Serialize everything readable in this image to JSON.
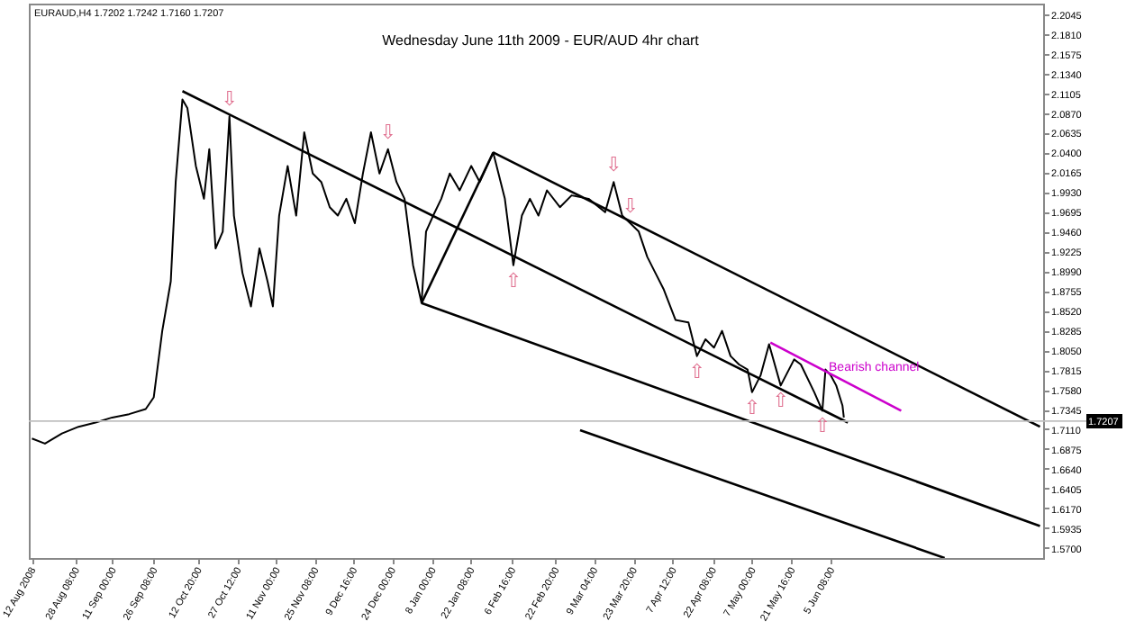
{
  "chart_data": {
    "type": "line",
    "title": "Wednesday June 11th 2009 - EUR/AUD 4hr chart",
    "subtitle": "EURAUD,H4  1.7202 1.7242 1.7160 1.7207",
    "xlim": [
      "2008-08-10T20:00",
      "2009-08-23T08:00"
    ],
    "ylim": [
      1.558,
      2.217
    ],
    "xticks": [
      {
        "value": "2008-08-12T00:00",
        "label": "12 Aug 2008"
      },
      {
        "value": "2008-08-28T08:00",
        "label": "28 Aug 08:00"
      },
      {
        "value": "2008-09-11T00:00",
        "label": "11 Sep 00:00"
      },
      {
        "value": "2008-09-26T08:00",
        "label": "26 Sep 08:00"
      },
      {
        "value": "2008-10-12T20:00",
        "label": "12 Oct 20:00"
      },
      {
        "value": "2008-10-27T12:00",
        "label": "27 Oct 12:00"
      },
      {
        "value": "2008-11-11T00:00",
        "label": "11 Nov 00:00"
      },
      {
        "value": "2008-11-25T08:00",
        "label": "25 Nov 08:00"
      },
      {
        "value": "2008-12-09T16:00",
        "label": "9 Dec 16:00"
      },
      {
        "value": "2008-12-24T00:00",
        "label": "24 Dec 00:00"
      },
      {
        "value": "2009-01-08T00:00",
        "label": "8 Jan 00:00"
      },
      {
        "value": "2009-01-22T08:00",
        "label": "22 Jan 08:00"
      },
      {
        "value": "2009-02-06T16:00",
        "label": "6 Feb 16:00"
      },
      {
        "value": "2009-02-22T20:00",
        "label": "22 Feb 20:00"
      },
      {
        "value": "2009-03-09T04:00",
        "label": "9 Mar 04:00"
      },
      {
        "value": "2009-03-23T20:00",
        "label": "23 Mar 20:00"
      },
      {
        "value": "2009-04-07T12:00",
        "label": "7 Apr 12:00"
      },
      {
        "value": "2009-04-22T08:00",
        "label": "22 Apr 08:00"
      },
      {
        "value": "2009-05-07T00:00",
        "label": "7 May 00:00"
      },
      {
        "value": "2009-05-21T16:00",
        "label": "21 May 16:00"
      },
      {
        "value": "2009-06-05T08:00",
        "label": "5 Jun 08:00"
      }
    ],
    "yticks": [
      {
        "value": 1.57,
        "label": "1.5700"
      },
      {
        "value": 1.5935,
        "label": "1.5935"
      },
      {
        "value": 1.617,
        "label": "1.6170"
      },
      {
        "value": 1.6405,
        "label": "1.6405"
      },
      {
        "value": 1.664,
        "label": "1.6640"
      },
      {
        "value": 1.6875,
        "label": "1.6875"
      },
      {
        "value": 1.711,
        "label": "1.7110"
      },
      {
        "value": 1.7345,
        "label": "1.7345"
      },
      {
        "value": 1.758,
        "label": "1.7580"
      },
      {
        "value": 1.7815,
        "label": "1.7815"
      },
      {
        "value": 1.805,
        "label": "1.8050"
      },
      {
        "value": 1.8285,
        "label": "1.8285"
      },
      {
        "value": 1.852,
        "label": "1.8520"
      },
      {
        "value": 1.8755,
        "label": "1.8755"
      },
      {
        "value": 1.899,
        "label": "1.8990"
      },
      {
        "value": 1.9225,
        "label": "1.9225"
      },
      {
        "value": 1.946,
        "label": "1.9460"
      },
      {
        "value": 1.9695,
        "label": "1.9695"
      },
      {
        "value": 1.993,
        "label": "1.9930"
      },
      {
        "value": 2.0165,
        "label": "2.0165"
      },
      {
        "value": 2.04,
        "label": "2.0400"
      },
      {
        "value": 2.0635,
        "label": "2.0635"
      },
      {
        "value": 2.087,
        "label": "2.0870"
      },
      {
        "value": 2.1105,
        "label": "2.1105"
      },
      {
        "value": 2.134,
        "label": "2.1340"
      },
      {
        "value": 2.1575,
        "label": "2.1575"
      },
      {
        "value": 2.181,
        "label": "2.1810"
      },
      {
        "value": 2.2045,
        "label": "2.2045"
      }
    ],
    "series": [
      {
        "color": "#000000",
        "x": [
          "2008-08-12T00:00",
          "2008-08-16T20:00",
          "2008-08-23T04:00",
          "2008-08-29T08:00",
          "2008-09-04T16:00",
          "2008-09-10T20:00",
          "2008-09-17T04:00",
          "2008-09-23T08:00",
          "2008-09-26T08:00",
          "2008-09-29T12:00",
          "2008-10-02T16:00",
          "2008-10-04T12:00",
          "2008-10-07T00:00",
          "2008-10-08T20:00",
          "2008-10-12T00:00",
          "2008-10-15T00:00",
          "2008-10-17T00:00",
          "2008-10-19T08:00",
          "2008-10-22T00:00",
          "2008-10-24T12:00",
          "2008-10-26T04:00",
          "2008-10-29T08:00",
          "2008-11-01T12:00",
          "2008-11-04T16:00",
          "2008-11-07T16:00",
          "2008-11-09T16:00",
          "2008-11-12T00:00",
          "2008-11-15T04:00",
          "2008-11-18T08:00",
          "2008-11-21T08:00",
          "2008-11-24T12:00",
          "2008-11-27T16:00",
          "2008-11-30T20:00",
          "2008-12-03T20:00",
          "2008-12-07T00:00",
          "2008-12-10T04:00",
          "2008-12-13T04:00",
          "2008-12-16T04:00",
          "2008-12-19T08:00",
          "2008-12-22T12:00",
          "2008-12-25T16:00",
          "2008-12-28T16:00",
          "2008-12-31T20:00",
          "2009-01-04T00:00",
          "2009-01-05T16:00",
          "2009-01-08T08:00",
          "2009-01-11T08:00",
          "2009-01-14T12:00",
          "2009-01-18T04:00",
          "2009-01-22T12:00",
          "2009-01-25T16:00",
          "2009-01-30T16:00",
          "2009-02-04T00:00",
          "2009-02-07T04:00",
          "2009-02-10T08:00",
          "2009-02-13T08:00",
          "2009-02-16T12:00",
          "2009-02-19T16:00",
          "2009-02-24T12:00",
          "2009-02-28T20:00",
          "2009-03-07T04:00",
          "2009-03-13T08:00",
          "2009-03-16T12:00",
          "2009-03-19T16:00",
          "2009-03-22T16:00",
          "2009-03-25T20:00",
          "2009-03-29T00:00",
          "2009-04-01T00:00",
          "2009-04-04T04:00",
          "2009-04-08T12:00",
          "2009-04-13T08:00",
          "2009-04-16T12:00",
          "2009-04-19T16:00",
          "2009-04-22T20:00",
          "2009-04-25T20:00",
          "2009-04-29T00:00",
          "2009-05-02T04:00",
          "2009-05-05T08:00",
          "2009-05-07T00:00",
          "2009-05-10T04:00",
          "2009-05-13T08:00",
          "2009-05-17T16:00",
          "2009-05-22T16:00",
          "2009-05-25T04:00",
          "2009-05-30T04:00",
          "2009-06-02T04:00",
          "2009-06-03T08:00",
          "2009-06-05T08:00",
          "2009-06-07T08:00",
          "2009-06-09T16:00",
          "2009-06-10T04:00"
        ],
        "values": [
          1.7,
          1.694,
          1.706,
          1.714,
          1.719,
          1.725,
          1.729,
          1.735,
          1.749,
          1.828,
          1.887,
          2.005,
          2.103,
          2.093,
          2.024,
          1.985,
          2.044,
          1.926,
          1.946,
          2.083,
          1.965,
          1.897,
          1.857,
          1.926,
          1.887,
          1.857,
          1.965,
          2.024,
          1.965,
          2.064,
          2.015,
          2.005,
          1.975,
          1.965,
          1.985,
          1.956,
          2.015,
          2.064,
          2.015,
          2.044,
          2.005,
          1.985,
          1.906,
          1.861,
          1.946,
          1.965,
          1.985,
          2.015,
          1.995,
          2.024,
          2.005,
          2.04,
          1.985,
          1.906,
          1.965,
          1.985,
          1.965,
          1.995,
          1.975,
          1.989,
          1.985,
          1.969,
          2.005,
          1.965,
          1.956,
          1.946,
          1.916,
          1.897,
          1.877,
          1.841,
          1.838,
          1.798,
          1.818,
          1.808,
          1.828,
          1.798,
          1.788,
          1.782,
          1.755,
          1.775,
          1.812,
          1.763,
          1.794,
          1.788,
          1.755,
          1.733,
          1.782,
          1.775,
          1.763,
          1.739,
          1.725
        ]
      },
      {
        "color": "#000000",
        "x": [
          "2008-10-07T00:00",
          "2009-06-11T16:00"
        ],
        "values": [
          2.113,
          1.719
        ]
      },
      {
        "color": "#000000",
        "x": [
          "2009-01-30T16:00",
          "2009-08-22T04:00"
        ],
        "values": [
          2.04,
          1.714
        ]
      },
      {
        "color": "#000000",
        "x": [
          "2009-01-04T00:00",
          "2009-08-22T04:00"
        ],
        "values": [
          1.861,
          1.596
        ]
      },
      {
        "color": "#000000",
        "x": [
          "2009-03-04T00:00",
          "2009-07-17T16:00"
        ],
        "values": [
          1.71,
          1.558
        ]
      },
      {
        "color": "#000000",
        "x": [
          "2009-01-04T00:00",
          "2009-01-30T16:00"
        ],
        "values": [
          1.861,
          2.04
        ]
      },
      {
        "name": "Bearish channel",
        "color": "#cc00cc",
        "x": [
          "2009-05-13T20:00",
          "2009-07-01T12:00"
        ],
        "values": [
          1.814,
          1.733
        ]
      }
    ],
    "ref_lines": [
      {
        "axis": "y",
        "value": 1.7207,
        "label": "1.7207",
        "color": "#c0c0c0"
      }
    ],
    "annotations": [
      {
        "text": "⇩",
        "x": "2008-10-24T12:00",
        "y": 2.083
      },
      {
        "text": "⇩",
        "x": "2008-12-22T12:00",
        "y": 2.044
      },
      {
        "text": "⇩",
        "x": "2009-03-16T12:00",
        "y": 2.005
      },
      {
        "text": "⇩",
        "x": "2009-03-22T16:00",
        "y": 1.956
      },
      {
        "text": "⇧",
        "x": "2009-02-07T04:00",
        "y": 1.906
      },
      {
        "text": "⇧",
        "x": "2009-04-16T12:00",
        "y": 1.798
      },
      {
        "text": "⇧",
        "x": "2009-05-07T00:00",
        "y": 1.755
      },
      {
        "text": "⇧",
        "x": "2009-05-17T16:00",
        "y": 1.763
      },
      {
        "text": "⇧",
        "x": "2009-06-02T04:00",
        "y": 1.733
      }
    ]
  }
}
